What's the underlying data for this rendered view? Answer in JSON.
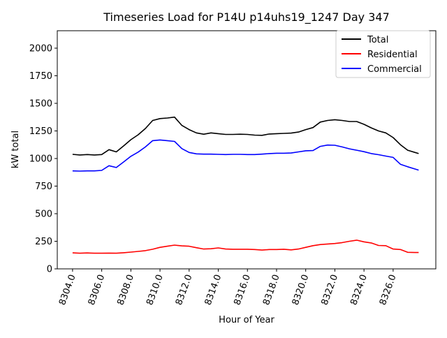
{
  "chart_data": {
    "type": "line",
    "title": "Timeseries Load for P14U p14uhs19_1247  Day 347",
    "xlabel": "Hour of Year",
    "ylabel": "kW total",
    "xlim": [
      8302.95,
      8328.93
    ],
    "ylim": [
      0,
      2158
    ],
    "xticks": [
      8304,
      8306,
      8308,
      8310,
      8312,
      8314,
      8316,
      8318,
      8320,
      8322,
      8324,
      8326
    ],
    "xtick_labels": [
      "8304.0",
      "8306.0",
      "8308.0",
      "8310.0",
      "8312.0",
      "8314.0",
      "8316.0",
      "8318.0",
      "8320.0",
      "8322.0",
      "8324.0",
      "8326.0"
    ],
    "yticks": [
      0,
      250,
      500,
      750,
      1000,
      1250,
      1500,
      1750,
      2000
    ],
    "ytick_labels": [
      "0",
      "250",
      "500",
      "750",
      "1000",
      "1250",
      "1500",
      "1750",
      "2000"
    ],
    "grid": false,
    "legend_position": "top-right",
    "x": [
      8304,
      8304.5,
      8305,
      8305.5,
      8306,
      8306.5,
      8307,
      8307.5,
      8308,
      8308.5,
      8309,
      8309.5,
      8310,
      8310.5,
      8311,
      8311.5,
      8312,
      8312.5,
      8313,
      8313.5,
      8314,
      8314.5,
      8315,
      8315.5,
      8316,
      8316.5,
      8317,
      8317.5,
      8318,
      8318.5,
      8319,
      8319.5,
      8320,
      8320.5,
      8321,
      8321.5,
      8322,
      8322.5,
      8323,
      8323.5,
      8324,
      8324.5,
      8325,
      8325.5,
      8326,
      8326.5,
      8327,
      8327.5,
      8327.75
    ],
    "series": [
      {
        "name": "Total",
        "color": "#000000",
        "values": [
          1038,
          1032,
          1036,
          1032,
          1036,
          1080,
          1060,
          1114,
          1171,
          1215,
          1272,
          1345,
          1362,
          1367,
          1375,
          1300,
          1262,
          1232,
          1220,
          1232,
          1225,
          1218,
          1218,
          1220,
          1218,
          1212,
          1210,
          1222,
          1225,
          1228,
          1230,
          1240,
          1262,
          1280,
          1330,
          1345,
          1352,
          1345,
          1335,
          1335,
          1310,
          1278,
          1250,
          1232,
          1190,
          1125,
          1075,
          1055,
          1045
        ]
      },
      {
        "name": "Residential",
        "color": "#ff0000",
        "values": [
          145,
          142,
          144,
          142,
          142,
          143,
          142,
          146,
          152,
          158,
          165,
          178,
          195,
          205,
          215,
          208,
          205,
          192,
          180,
          182,
          190,
          180,
          178,
          178,
          178,
          175,
          170,
          175,
          175,
          178,
          172,
          180,
          195,
          210,
          220,
          225,
          230,
          238,
          250,
          260,
          245,
          235,
          212,
          210,
          180,
          175,
          150,
          148,
          148
        ]
      },
      {
        "name": "Commercial",
        "color": "#0000ff",
        "values": [
          888,
          886,
          888,
          888,
          892,
          935,
          918,
          968,
          1020,
          1058,
          1105,
          1162,
          1168,
          1162,
          1155,
          1090,
          1055,
          1042,
          1040,
          1040,
          1038,
          1036,
          1038,
          1038,
          1036,
          1036,
          1040,
          1045,
          1048,
          1048,
          1050,
          1060,
          1070,
          1072,
          1110,
          1122,
          1120,
          1105,
          1088,
          1075,
          1062,
          1045,
          1035,
          1022,
          1010,
          948,
          925,
          905,
          895
        ]
      }
    ]
  }
}
